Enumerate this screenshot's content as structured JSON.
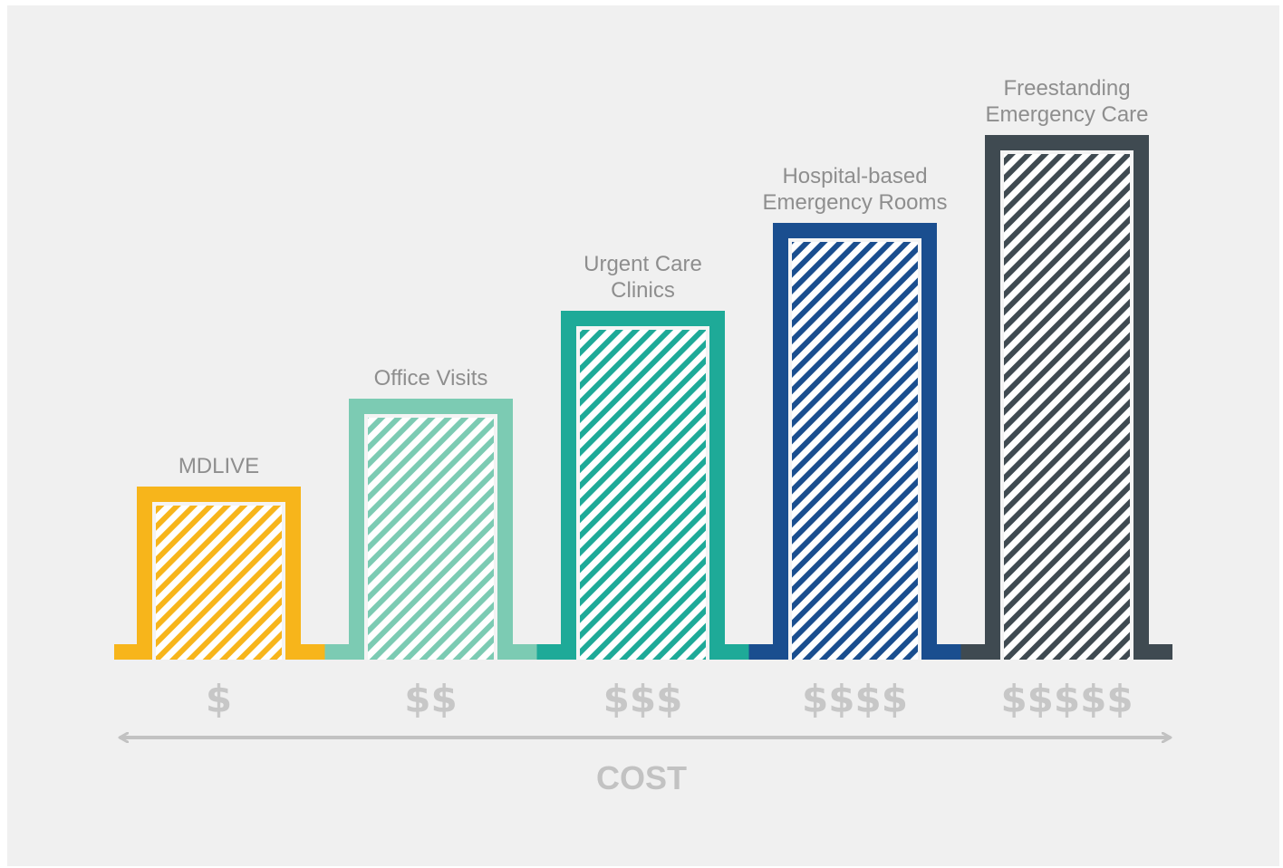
{
  "chart_data": {
    "type": "bar",
    "categories": [
      "MDLIVE",
      "Office Visits",
      "Urgent Care Clinics",
      "Hospital-based Emergency Rooms",
      "Freestanding Emergency Care"
    ],
    "label_lines": [
      [
        "MDLIVE"
      ],
      [
        "Office Visits"
      ],
      [
        "Urgent Care",
        "Clinics"
      ],
      [
        "Hospital-based",
        "Emergency Rooms"
      ],
      [
        "Freestanding",
        "Emergency Care"
      ]
    ],
    "values": [
      1,
      2,
      3,
      4,
      5
    ],
    "tick_labels": [
      "$",
      "$$",
      "$$$",
      "$$$$",
      "$$$$$"
    ],
    "xlabel": "COST",
    "ylabel": "",
    "title": "",
    "ylim": [
      0,
      5
    ],
    "grid": false,
    "legend": "none",
    "colors": [
      "#f7b51b",
      "#7ccbb3",
      "#1eaa98",
      "#1a4e8f",
      "#3f4a51"
    ]
  }
}
